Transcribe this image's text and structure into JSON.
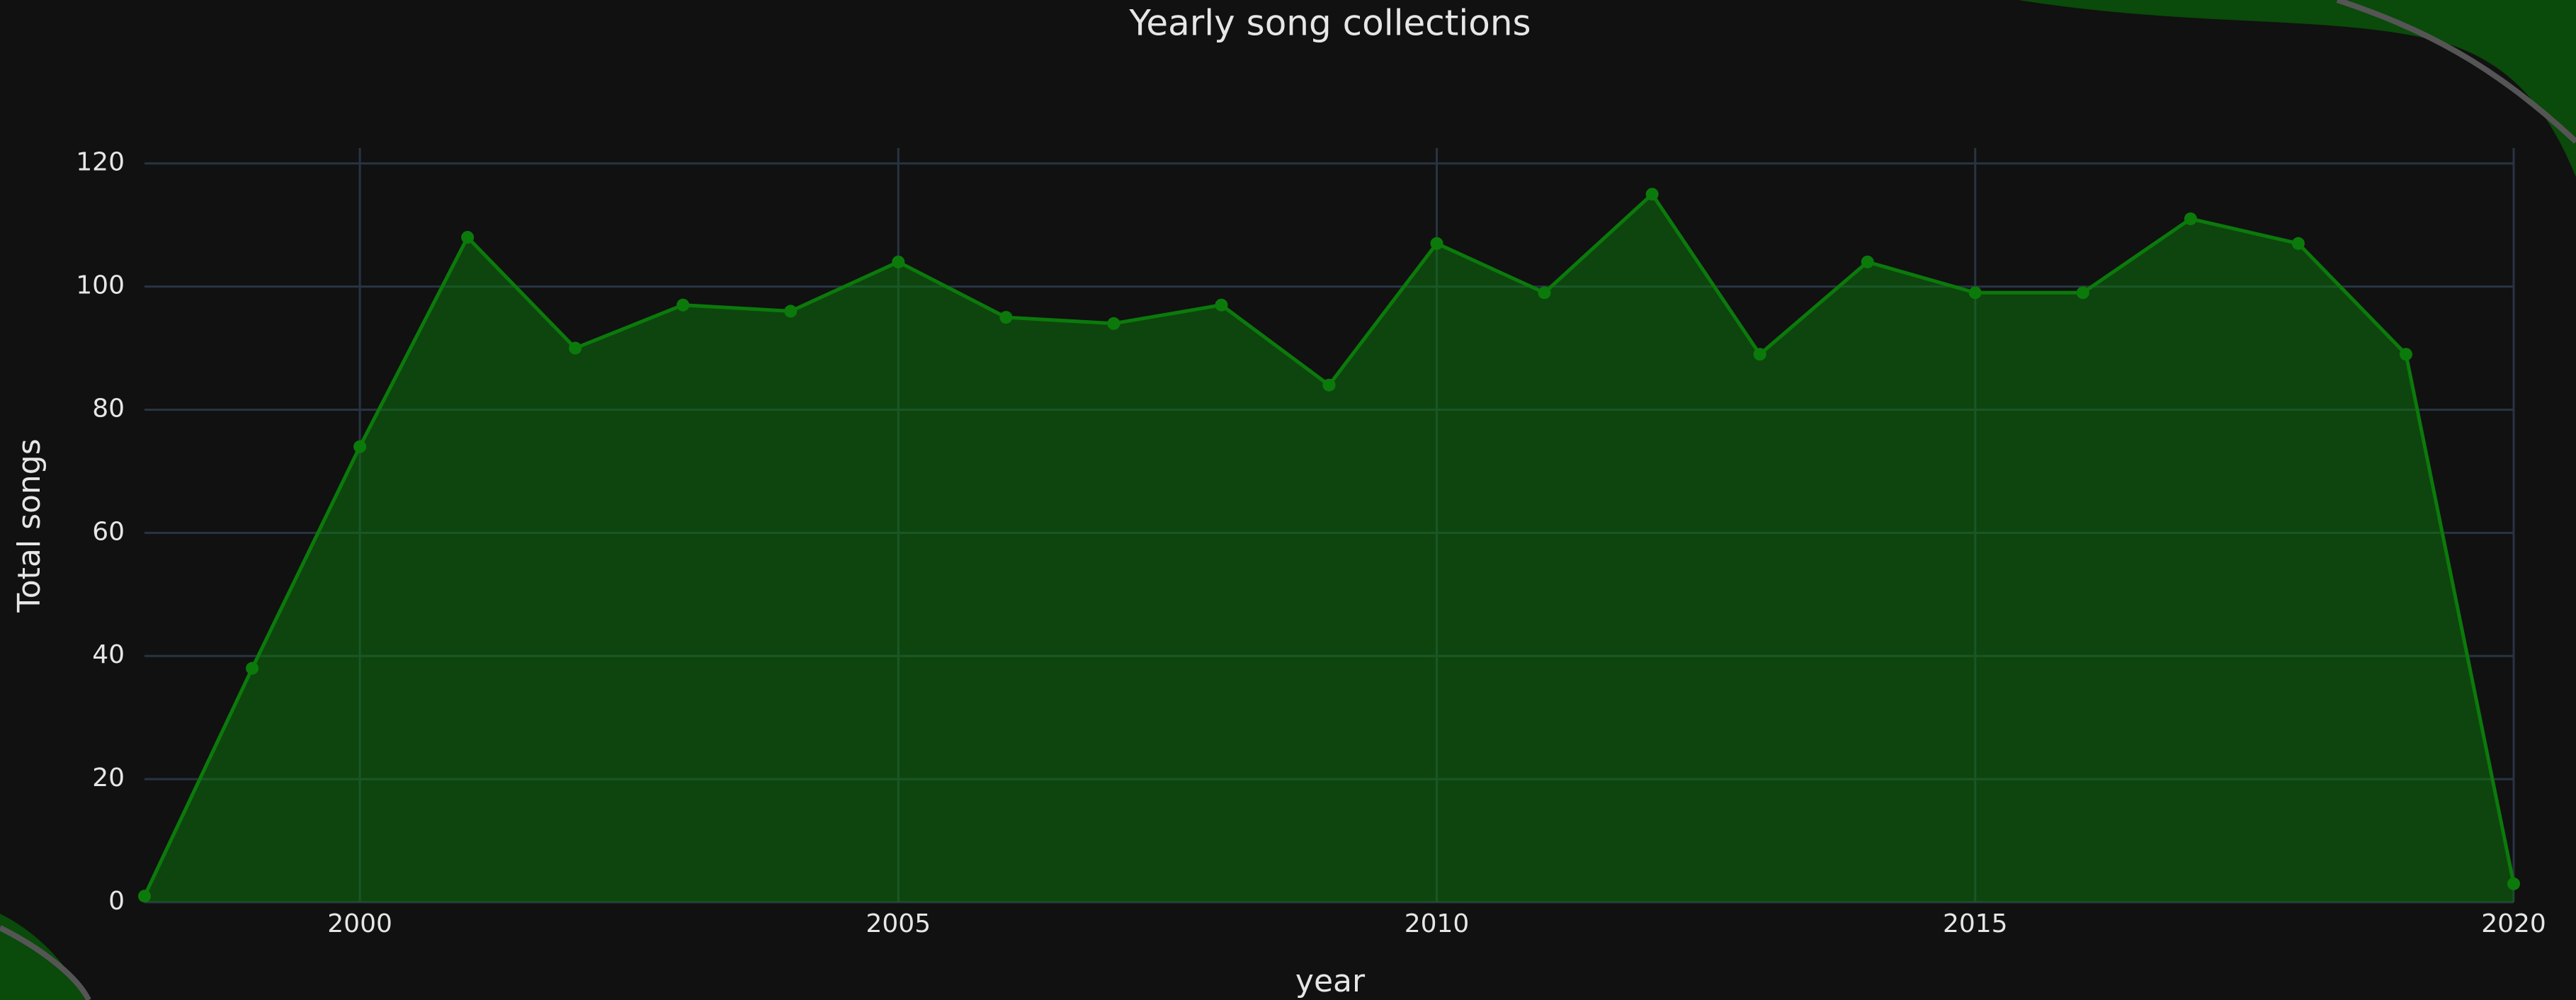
{
  "chart_data": {
    "type": "area",
    "title": "Yearly song collections",
    "x_label": "year",
    "y_label": "Total songs",
    "x": [
      1998,
      1999,
      2000,
      2001,
      2002,
      2003,
      2004,
      2005,
      2006,
      2007,
      2008,
      2009,
      2010,
      2011,
      2012,
      2013,
      2014,
      2015,
      2016,
      2017,
      2018,
      2019,
      2020
    ],
    "series": [
      {
        "name": "Total songs",
        "color": "#0b7a0b",
        "values": [
          1,
          38,
          74,
          108,
          90,
          97,
          96,
          104,
          95,
          94,
          97,
          84,
          107,
          99,
          115,
          89,
          104,
          99,
          99,
          111,
          107,
          89,
          3
        ]
      }
    ],
    "xlim": [
      1998,
      2020
    ],
    "xticks": [
      2000,
      2005,
      2010,
      2015,
      2020
    ],
    "ylim": [
      0,
      122.5
    ],
    "yticks": [
      0,
      20,
      40,
      60,
      80,
      100,
      120
    ],
    "grid": true
  }
}
